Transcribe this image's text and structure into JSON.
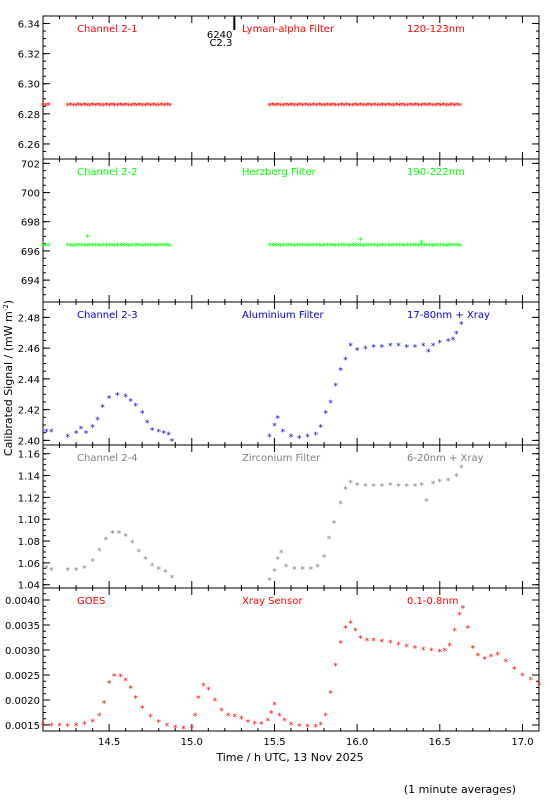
{
  "figure": {
    "xlabel": "Time / h UTC, 13 Nov 2025",
    "ylabel": "Calibrated Signal / (mW m",
    "ylabel_sup": "-2",
    "ylabel_end": ")",
    "footnote": "(1 minute averages)",
    "marker": "*"
  },
  "chart_data": [
    {
      "type": "scatter",
      "title": "Channel 2-1",
      "filter": "Lyman-alpha Filter",
      "band": "120-123nm",
      "color": "#ff0000",
      "xlim": [
        14.1,
        17.1
      ],
      "ylim": [
        6.25,
        6.345
      ],
      "yticks": [
        6.26,
        6.28,
        6.3,
        6.32,
        6.34
      ],
      "ytick_labels": [
        "6.26",
        "6.28",
        "6.30",
        "6.32",
        "6.34"
      ],
      "annotation": {
        "text1": "6240",
        "text2": "C2.3",
        "x": 15.1
      },
      "segments": [
        {
          "x_start": 14.1,
          "x_end": 14.15,
          "step": 0.0167,
          "y": 6.286
        },
        {
          "x_start": 14.25,
          "x_end": 14.88,
          "step": 0.0167,
          "y": 6.286
        },
        {
          "x_start": 15.47,
          "x_end": 16.63,
          "step": 0.0167,
          "y": 6.286
        }
      ]
    },
    {
      "type": "scatter",
      "title": "Channel 2-2",
      "filter": "Herzberg Filter",
      "band": "190-222nm",
      "color": "#00ff00",
      "xlim": [
        14.1,
        17.1
      ],
      "ylim": [
        692.5,
        702.3
      ],
      "yticks": [
        694,
        696,
        698,
        700,
        702
      ],
      "ytick_labels": [
        "694",
        "696",
        "698",
        "700",
        "702"
      ],
      "segments": [
        {
          "x_start": 14.1,
          "x_end": 14.15,
          "step": 0.0167,
          "y": 696.4
        },
        {
          "x_start": 14.25,
          "x_end": 14.88,
          "step": 0.0167,
          "y": 696.4
        },
        {
          "x_start": 15.47,
          "x_end": 16.63,
          "step": 0.0167,
          "y": 696.4
        }
      ],
      "outliers": [
        [
          14.37,
          697.0
        ],
        [
          16.02,
          696.8
        ],
        [
          16.39,
          696.6
        ]
      ]
    },
    {
      "type": "scatter",
      "title": "Channel 2-3",
      "filter": "Aluminium Filter",
      "band": "17-80nm + Xray",
      "color": "#0000dd",
      "xlim": [
        14.1,
        17.1
      ],
      "ylim": [
        2.397,
        2.49
      ],
      "yticks": [
        2.4,
        2.42,
        2.44,
        2.46,
        2.48
      ],
      "ytick_labels": [
        "2.40",
        "2.42",
        "2.44",
        "2.46",
        "2.48"
      ],
      "points": [
        [
          14.12,
          2.406
        ],
        [
          14.15,
          2.406
        ],
        [
          14.25,
          2.403
        ],
        [
          14.3,
          2.405
        ],
        [
          14.33,
          2.408
        ],
        [
          14.36,
          2.405
        ],
        [
          14.4,
          2.409
        ],
        [
          14.43,
          2.414
        ],
        [
          14.46,
          2.422
        ],
        [
          14.5,
          2.428
        ],
        [
          14.55,
          2.43
        ],
        [
          14.6,
          2.429
        ],
        [
          14.63,
          2.426
        ],
        [
          14.66,
          2.423
        ],
        [
          14.7,
          2.418
        ],
        [
          14.73,
          2.412
        ],
        [
          14.76,
          2.407
        ],
        [
          14.8,
          2.406
        ],
        [
          14.83,
          2.405
        ],
        [
          14.86,
          2.404
        ],
        [
          14.88,
          2.4
        ],
        [
          15.47,
          2.403
        ],
        [
          15.5,
          2.41
        ],
        [
          15.52,
          2.415
        ],
        [
          15.55,
          2.406
        ],
        [
          15.6,
          2.403
        ],
        [
          15.65,
          2.402
        ],
        [
          15.7,
          2.403
        ],
        [
          15.75,
          2.404
        ],
        [
          15.78,
          2.409
        ],
        [
          15.81,
          2.418
        ],
        [
          15.84,
          2.425
        ],
        [
          15.87,
          2.436
        ],
        [
          15.9,
          2.446
        ],
        [
          15.93,
          2.453
        ],
        [
          15.96,
          2.462
        ],
        [
          16.0,
          2.459
        ],
        [
          16.05,
          2.46
        ],
        [
          16.1,
          2.461
        ],
        [
          16.15,
          2.461
        ],
        [
          16.2,
          2.462
        ],
        [
          16.25,
          2.462
        ],
        [
          16.3,
          2.461
        ],
        [
          16.35,
          2.461
        ],
        [
          16.4,
          2.462
        ],
        [
          16.43,
          2.458
        ],
        [
          16.46,
          2.462
        ],
        [
          16.5,
          2.464
        ],
        [
          16.55,
          2.465
        ],
        [
          16.58,
          2.466
        ],
        [
          16.6,
          2.47
        ],
        [
          16.63,
          2.476
        ]
      ]
    },
    {
      "type": "scatter",
      "title": "Channel 2-4",
      "filter": "Zirconium Filter",
      "band": "6-20nm + Xray",
      "color": "#808080",
      "xlim": [
        14.1,
        17.1
      ],
      "ylim": [
        1.037,
        1.168
      ],
      "yticks": [
        1.04,
        1.06,
        1.08,
        1.1,
        1.12,
        1.14,
        1.16
      ],
      "ytick_labels": [
        "1.04",
        "1.06",
        "1.08",
        "1.10",
        "1.12",
        "1.14",
        "1.16"
      ],
      "points": [
        [
          14.12,
          1.056
        ],
        [
          14.15,
          1.054
        ],
        [
          14.25,
          1.054
        ],
        [
          14.3,
          1.054
        ],
        [
          14.35,
          1.056
        ],
        [
          14.4,
          1.062
        ],
        [
          14.44,
          1.072
        ],
        [
          14.48,
          1.082
        ],
        [
          14.52,
          1.088
        ],
        [
          14.56,
          1.088
        ],
        [
          14.6,
          1.085
        ],
        [
          14.64,
          1.079
        ],
        [
          14.68,
          1.071
        ],
        [
          14.72,
          1.064
        ],
        [
          14.76,
          1.058
        ],
        [
          14.8,
          1.055
        ],
        [
          14.84,
          1.052
        ],
        [
          14.88,
          1.047
        ],
        [
          15.47,
          1.045
        ],
        [
          15.5,
          1.053
        ],
        [
          15.52,
          1.064
        ],
        [
          15.54,
          1.07
        ],
        [
          15.57,
          1.057
        ],
        [
          15.62,
          1.055
        ],
        [
          15.67,
          1.055
        ],
        [
          15.72,
          1.055
        ],
        [
          15.76,
          1.057
        ],
        [
          15.8,
          1.066
        ],
        [
          15.83,
          1.083
        ],
        [
          15.86,
          1.097
        ],
        [
          15.9,
          1.115
        ],
        [
          15.93,
          1.128
        ],
        [
          15.96,
          1.134
        ],
        [
          16.0,
          1.132
        ],
        [
          16.05,
          1.131
        ],
        [
          16.1,
          1.131
        ],
        [
          16.15,
          1.131
        ],
        [
          16.2,
          1.132
        ],
        [
          16.25,
          1.131
        ],
        [
          16.3,
          1.131
        ],
        [
          16.35,
          1.131
        ],
        [
          16.39,
          1.132
        ],
        [
          16.42,
          1.117
        ],
        [
          16.46,
          1.133
        ],
        [
          16.5,
          1.135
        ],
        [
          16.55,
          1.136
        ],
        [
          16.6,
          1.14
        ],
        [
          16.63,
          1.148
        ]
      ]
    },
    {
      "type": "scatter",
      "title": "GOES",
      "filter": "Xray Sensor",
      "band": "0.1-0.8nm",
      "color": "#ff0000",
      "xlim": [
        14.1,
        17.1
      ],
      "ylim": [
        0.00138,
        0.00424
      ],
      "yticks": [
        0.0015,
        0.002,
        0.0025,
        0.003,
        0.0035,
        0.004
      ],
      "ytick_labels": [
        "0.0015",
        "0.0020",
        "0.0025",
        "0.0030",
        "0.0035",
        "0.0040"
      ],
      "xticks": [
        14.5,
        15.0,
        15.5,
        16.0,
        16.5,
        17.0
      ],
      "xtick_labels": [
        "14.5",
        "15.0",
        "15.5",
        "16.0",
        "16.5",
        "17.0"
      ],
      "points": [
        [
          14.1,
          0.00152
        ],
        [
          14.15,
          0.0015
        ],
        [
          14.2,
          0.0015
        ],
        [
          14.25,
          0.00149
        ],
        [
          14.3,
          0.0015
        ],
        [
          14.35,
          0.00153
        ],
        [
          14.4,
          0.00158
        ],
        [
          14.44,
          0.0017
        ],
        [
          14.47,
          0.00195
        ],
        [
          14.5,
          0.00235
        ],
        [
          14.53,
          0.00249
        ],
        [
          14.57,
          0.00248
        ],
        [
          14.6,
          0.0024
        ],
        [
          14.63,
          0.00225
        ],
        [
          14.66,
          0.00205
        ],
        [
          14.7,
          0.00185
        ],
        [
          14.75,
          0.00168
        ],
        [
          14.8,
          0.00157
        ],
        [
          14.85,
          0.0015
        ],
        [
          14.9,
          0.00146
        ],
        [
          14.95,
          0.00144
        ],
        [
          15.0,
          0.00146
        ],
        [
          15.02,
          0.0017
        ],
        [
          15.04,
          0.00205
        ],
        [
          15.07,
          0.0023
        ],
        [
          15.1,
          0.00222
        ],
        [
          15.14,
          0.002
        ],
        [
          15.18,
          0.0018
        ],
        [
          15.22,
          0.0017
        ],
        [
          15.26,
          0.00168
        ],
        [
          15.3,
          0.00164
        ],
        [
          15.34,
          0.00157
        ],
        [
          15.38,
          0.00154
        ],
        [
          15.42,
          0.00153
        ],
        [
          15.46,
          0.0016
        ],
        [
          15.48,
          0.00175
        ],
        [
          15.5,
          0.00192
        ],
        [
          15.53,
          0.0017
        ],
        [
          15.56,
          0.0016
        ],
        [
          15.6,
          0.00152
        ],
        [
          15.65,
          0.00149
        ],
        [
          15.7,
          0.00148
        ],
        [
          15.75,
          0.00148
        ],
        [
          15.78,
          0.00152
        ],
        [
          15.81,
          0.0017
        ],
        [
          15.84,
          0.00215
        ],
        [
          15.87,
          0.0027
        ],
        [
          15.9,
          0.00315
        ],
        [
          15.93,
          0.00345
        ],
        [
          15.96,
          0.00355
        ],
        [
          15.99,
          0.0034
        ],
        [
          16.02,
          0.00325
        ],
        [
          16.06,
          0.0032
        ],
        [
          16.1,
          0.0032
        ],
        [
          16.15,
          0.00318
        ],
        [
          16.2,
          0.00316
        ],
        [
          16.25,
          0.00312
        ],
        [
          16.3,
          0.00308
        ],
        [
          16.35,
          0.00305
        ],
        [
          16.4,
          0.00302
        ],
        [
          16.45,
          0.003
        ],
        [
          16.5,
          0.00298
        ],
        [
          16.53,
          0.003
        ],
        [
          16.56,
          0.0031
        ],
        [
          16.59,
          0.0034
        ],
        [
          16.62,
          0.00372
        ],
        [
          16.64,
          0.00385
        ],
        [
          16.67,
          0.00345
        ],
        [
          16.7,
          0.00305
        ],
        [
          16.73,
          0.0029
        ],
        [
          16.77,
          0.00283
        ],
        [
          16.81,
          0.00288
        ],
        [
          16.85,
          0.00292
        ],
        [
          16.9,
          0.00278
        ],
        [
          16.95,
          0.00263
        ],
        [
          17.0,
          0.0025
        ],
        [
          17.05,
          0.00242
        ],
        [
          17.1,
          0.00232
        ]
      ]
    }
  ]
}
